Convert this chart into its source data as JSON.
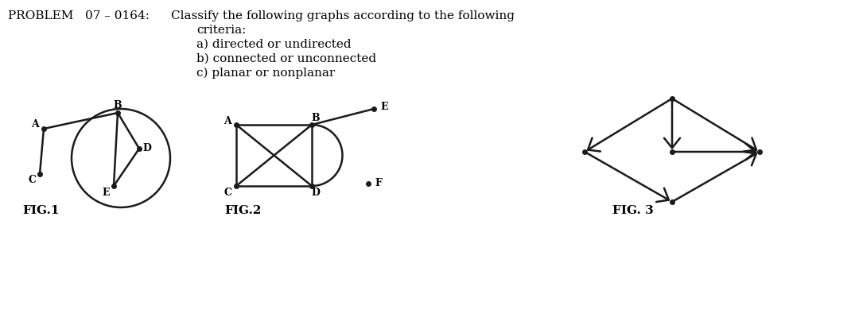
{
  "title_text": "PROBLEM   07 – 0164:",
  "problem_line1": "Classify the following graphs according to the following",
  "problem_line2": "criteria:",
  "problem_line3": "a) directed or undirected",
  "problem_line4": "b) connected or unconnected",
  "problem_line5": "c) planar or nonplanar",
  "fig1_label": "FIG.1",
  "fig2_label": "FIG.2",
  "fig3_label": "FIG. 3",
  "bg_color": "#ffffff",
  "line_color": "#1a1a1a",
  "node_color": "#1a1a1a"
}
